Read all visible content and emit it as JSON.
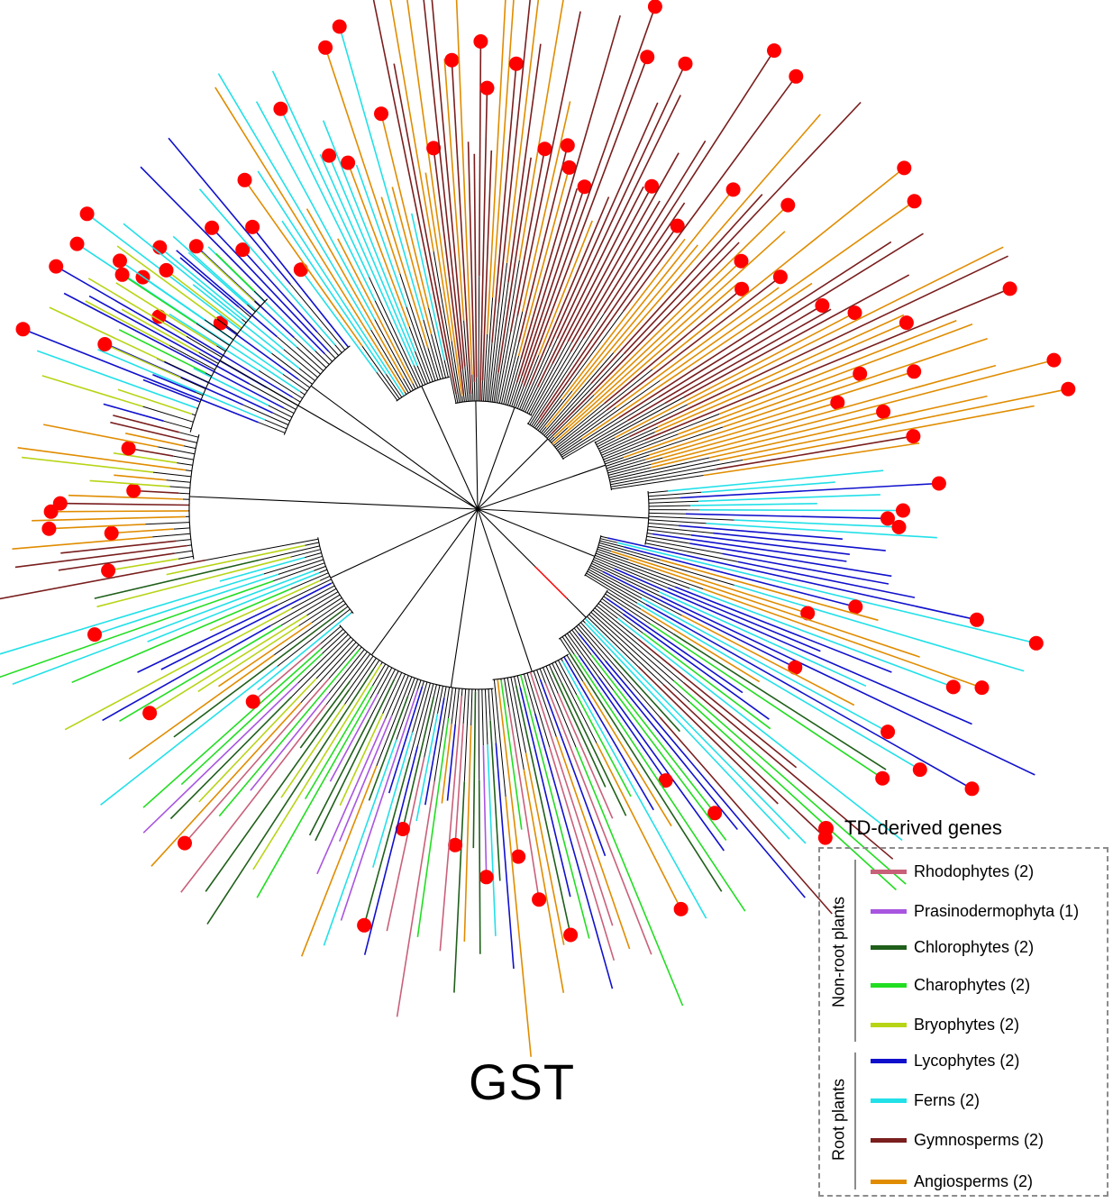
{
  "title": "GST",
  "td_legend": {
    "label": "TD-derived genes",
    "color": "#ff0000"
  },
  "groups": [
    {
      "label": "Non-root plants",
      "items": [
        {
          "label": "Rhodophytes (2)",
          "color": "#c9607a"
        },
        {
          "label": "Prasinodermophyta (1)",
          "color": "#a855e0"
        },
        {
          "label": "Chlorophytes (2)",
          "color": "#1f5f1a"
        },
        {
          "label": "Charophytes (2)",
          "color": "#22dd22"
        },
        {
          "label": "Bryophytes (2)",
          "color": "#b8d416"
        }
      ]
    },
    {
      "label": "Root plants",
      "items": [
        {
          "label": "Lycophytes (2)",
          "color": "#1010cc"
        },
        {
          "label": "Ferns (2)",
          "color": "#22e0e8"
        },
        {
          "label": "Gymnosperms (2)",
          "color": "#7a1e1e"
        },
        {
          "label": "Angiosperms (2)",
          "color": "#e08c00"
        }
      ]
    }
  ]
}
